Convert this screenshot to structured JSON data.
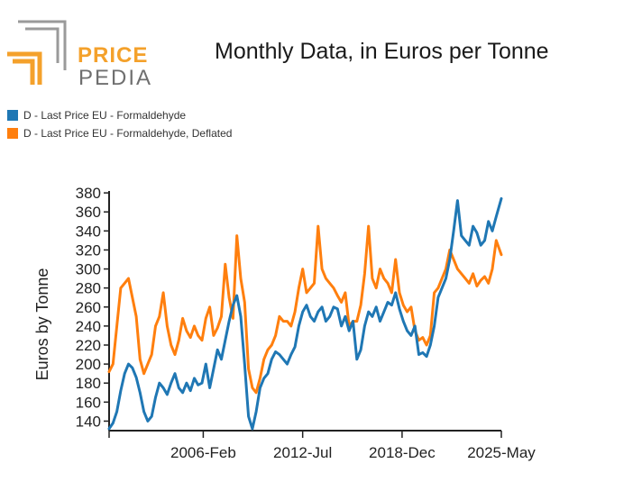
{
  "logo": {
    "word_1": "PRICE",
    "word_2": "PEDIA",
    "colors": {
      "orange": "#f4a12b",
      "grey": "#9a9a9a"
    }
  },
  "chart_data": {
    "type": "line",
    "title": "Monthly Data, in Euros per Tonne",
    "xlabel": "",
    "ylabel": "Euros by Tonne",
    "ylim": [
      130,
      382
    ],
    "xlim": [
      2000.0,
      2025.33
    ],
    "yticks": [
      140,
      160,
      180,
      200,
      220,
      240,
      260,
      280,
      300,
      320,
      340,
      360,
      380
    ],
    "xticks": [
      {
        "label": "2006-Feb",
        "x": 2006.08
      },
      {
        "label": "2012-Jul",
        "x": 2012.5
      },
      {
        "label": "2018-Dec",
        "x": 2018.92
      },
      {
        "label": "2025-May",
        "x": 2025.33
      }
    ],
    "legend_position": "top-left",
    "series": [
      {
        "name": "D - Last Price EU - Formaldehyde",
        "color": "#1f77b4",
        "x": [
          2000.0,
          2000.25,
          2000.5,
          2000.75,
          2001.0,
          2001.25,
          2001.5,
          2001.75,
          2002.0,
          2002.25,
          2002.5,
          2002.75,
          2003.0,
          2003.25,
          2003.5,
          2003.75,
          2004.0,
          2004.25,
          2004.5,
          2004.75,
          2005.0,
          2005.25,
          2005.5,
          2005.75,
          2006.0,
          2006.25,
          2006.5,
          2006.75,
          2007.0,
          2007.25,
          2007.5,
          2007.75,
          2008.0,
          2008.25,
          2008.5,
          2008.75,
          2009.0,
          2009.25,
          2009.5,
          2009.75,
          2010.0,
          2010.25,
          2010.5,
          2010.75,
          2011.0,
          2011.25,
          2011.5,
          2011.75,
          2012.0,
          2012.25,
          2012.5,
          2012.75,
          2013.0,
          2013.25,
          2013.5,
          2013.75,
          2014.0,
          2014.25,
          2014.5,
          2014.75,
          2015.0,
          2015.25,
          2015.5,
          2015.75,
          2016.0,
          2016.25,
          2016.5,
          2016.75,
          2017.0,
          2017.25,
          2017.5,
          2017.75,
          2018.0,
          2018.25,
          2018.5,
          2018.75,
          2019.0,
          2019.25,
          2019.5,
          2019.75,
          2020.0,
          2020.25,
          2020.5,
          2020.75,
          2021.0,
          2021.25,
          2021.5,
          2021.75,
          2022.0,
          2022.25,
          2022.5,
          2022.75,
          2023.0,
          2023.25,
          2023.5,
          2023.75,
          2024.0,
          2024.25,
          2024.5,
          2024.75,
          2025.0,
          2025.33
        ],
        "values": [
          132,
          138,
          150,
          172,
          190,
          200,
          196,
          186,
          170,
          150,
          140,
          145,
          165,
          180,
          175,
          168,
          180,
          190,
          175,
          170,
          180,
          172,
          185,
          178,
          180,
          200,
          175,
          195,
          215,
          205,
          225,
          245,
          262,
          272,
          250,
          200,
          145,
          132,
          150,
          175,
          185,
          190,
          205,
          213,
          210,
          205,
          200,
          210,
          218,
          240,
          255,
          262,
          250,
          245,
          255,
          260,
          245,
          250,
          260,
          258,
          240,
          250,
          235,
          245,
          205,
          215,
          240,
          255,
          250,
          260,
          245,
          255,
          265,
          262,
          275,
          258,
          245,
          235,
          230,
          240,
          210,
          212,
          208,
          220,
          240,
          270,
          280,
          290,
          310,
          340,
          372,
          335,
          330,
          325,
          345,
          338,
          325,
          330,
          350,
          340,
          355,
          374
        ]
      },
      {
        "name": "D - Last Price EU - Formaldehyde, Deflated",
        "color": "#ff7f0e",
        "x": [
          2000.0,
          2000.25,
          2000.5,
          2000.75,
          2001.0,
          2001.25,
          2001.5,
          2001.75,
          2002.0,
          2002.25,
          2002.5,
          2002.75,
          2003.0,
          2003.25,
          2003.5,
          2003.75,
          2004.0,
          2004.25,
          2004.5,
          2004.75,
          2005.0,
          2005.25,
          2005.5,
          2005.75,
          2006.0,
          2006.25,
          2006.5,
          2006.75,
          2007.0,
          2007.25,
          2007.5,
          2007.75,
          2008.0,
          2008.25,
          2008.5,
          2008.75,
          2009.0,
          2009.25,
          2009.5,
          2009.75,
          2010.0,
          2010.25,
          2010.5,
          2010.75,
          2011.0,
          2011.25,
          2011.5,
          2011.75,
          2012.0,
          2012.25,
          2012.5,
          2012.75,
          2013.0,
          2013.25,
          2013.5,
          2013.75,
          2014.0,
          2014.25,
          2014.5,
          2014.75,
          2015.0,
          2015.25,
          2015.5,
          2015.75,
          2016.0,
          2016.25,
          2016.5,
          2016.75,
          2017.0,
          2017.25,
          2017.5,
          2017.75,
          2018.0,
          2018.25,
          2018.5,
          2018.75,
          2019.0,
          2019.25,
          2019.5,
          2019.75,
          2020.0,
          2020.25,
          2020.5,
          2020.75,
          2021.0,
          2021.25,
          2021.5,
          2021.75,
          2022.0,
          2022.25,
          2022.5,
          2022.75,
          2023.0,
          2023.25,
          2023.5,
          2023.75,
          2024.0,
          2024.25,
          2024.5,
          2024.75,
          2025.0,
          2025.33
        ],
        "values": [
          192,
          200,
          240,
          280,
          285,
          290,
          270,
          250,
          205,
          190,
          200,
          210,
          240,
          250,
          275,
          240,
          220,
          210,
          225,
          248,
          235,
          228,
          240,
          230,
          225,
          248,
          260,
          230,
          238,
          250,
          305,
          270,
          248,
          335,
          290,
          265,
          195,
          175,
          170,
          185,
          205,
          215,
          220,
          230,
          250,
          245,
          245,
          240,
          255,
          280,
          300,
          275,
          280,
          285,
          345,
          300,
          290,
          285,
          280,
          272,
          265,
          275,
          240,
          245,
          245,
          262,
          295,
          345,
          290,
          280,
          300,
          290,
          285,
          275,
          310,
          275,
          262,
          255,
          260,
          235,
          225,
          228,
          220,
          230,
          275,
          280,
          290,
          300,
          320,
          310,
          300,
          295,
          290,
          285,
          295,
          282,
          288,
          292,
          285,
          300,
          330,
          315
        ]
      }
    ]
  }
}
